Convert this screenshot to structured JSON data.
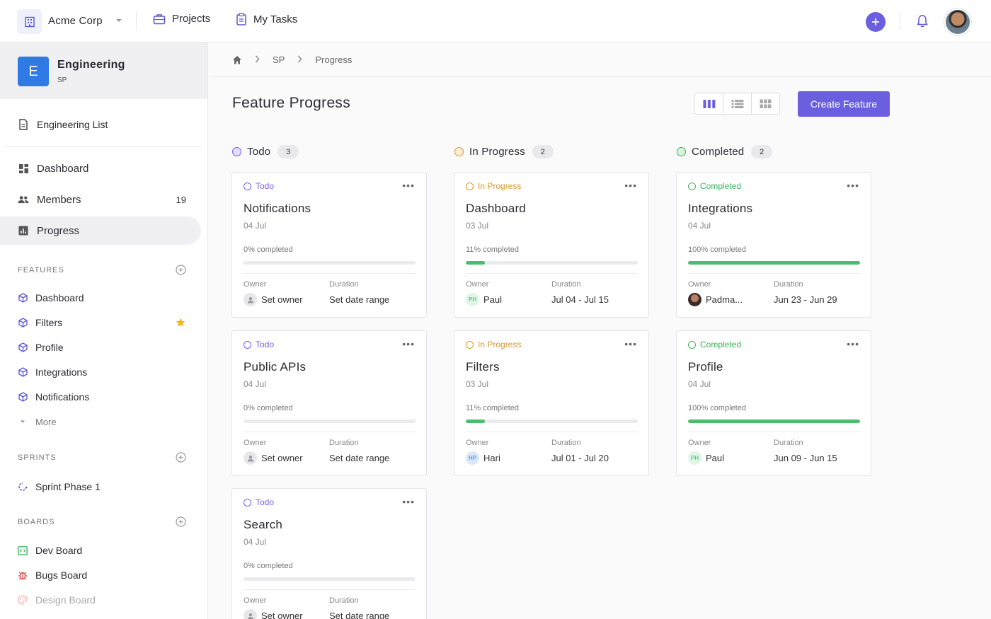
{
  "topbar": {
    "org_name": "Acme Corp",
    "nav": [
      {
        "label": "Projects",
        "icon": "briefcase-icon"
      },
      {
        "label": "My Tasks",
        "icon": "clipboard-icon"
      }
    ]
  },
  "sidebar": {
    "space": {
      "initial": "E",
      "name": "Engineering",
      "code": "SP"
    },
    "list_link": "Engineering List",
    "main_items": [
      {
        "label": "Dashboard",
        "icon": "dashboard-icon"
      },
      {
        "label": "Members",
        "icon": "people-icon",
        "count": "19"
      },
      {
        "label": "Progress",
        "icon": "chart-icon"
      }
    ],
    "features_title": "FEATURES",
    "features": [
      "Dashboard",
      "Filters",
      "Profile",
      "Integrations",
      "Notifications"
    ],
    "more_label": "More",
    "sprints_title": "SPRINTS",
    "sprints": [
      "Sprint Phase 1"
    ],
    "boards_title": "BOARDS",
    "boards": [
      "Dev Board",
      "Bugs Board",
      "Design Board"
    ]
  },
  "breadcrumb": {
    "items": [
      "SP",
      "Progress"
    ]
  },
  "page": {
    "title": "Feature Progress",
    "create_label": "Create Feature"
  },
  "colors": {
    "accent": "#6b5fe0",
    "todo": "#7a5ce6",
    "in_progress": "#d79a2c",
    "completed": "#3cb35c",
    "progress_fill": "#4bbd6b"
  },
  "columns": [
    {
      "name": "Todo",
      "count": "3",
      "status_key": "todo",
      "cards": [
        {
          "status": "Todo",
          "title": "Notifications",
          "date": "04 Jul",
          "progress": 0,
          "pct_label": "0% completed",
          "owner_label": "Owner",
          "owner": "Set owner",
          "owner_initials": "",
          "duration_label": "Duration",
          "duration": "Set date range"
        },
        {
          "status": "Todo",
          "title": "Public APIs",
          "date": "04 Jul",
          "progress": 0,
          "pct_label": "0% completed",
          "owner_label": "Owner",
          "owner": "Set owner",
          "owner_initials": "",
          "duration_label": "Duration",
          "duration": "Set date range"
        },
        {
          "status": "Todo",
          "title": "Search",
          "date": "04 Jul",
          "progress": 0,
          "pct_label": "0% completed",
          "owner_label": "Owner",
          "owner": "Set owner",
          "owner_initials": "",
          "duration_label": "Duration",
          "duration": "Set date range"
        }
      ]
    },
    {
      "name": "In Progress",
      "count": "2",
      "status_key": "in_progress",
      "cards": [
        {
          "status": "In Progress",
          "title": "Dashboard",
          "date": "03 Jul",
          "progress": 11,
          "pct_label": "11% completed",
          "owner_label": "Owner",
          "owner": "Paul",
          "owner_initials": "PH",
          "duration_label": "Duration",
          "duration": "Jul 04 - Jul 15"
        },
        {
          "status": "In Progress",
          "title": "Filters",
          "date": "03 Jul",
          "progress": 11,
          "pct_label": "11% completed",
          "owner_label": "Owner",
          "owner": "Hari",
          "owner_initials": "HP",
          "duration_label": "Duration",
          "duration": "Jul 01 - Jul 20"
        }
      ]
    },
    {
      "name": "Completed",
      "count": "2",
      "status_key": "completed",
      "cards": [
        {
          "status": "Completed",
          "title": "Integrations",
          "date": "04 Jul",
          "progress": 100,
          "pct_label": "100% completed",
          "owner_label": "Owner",
          "owner": "Padma...",
          "owner_initials": "",
          "duration_label": "Duration",
          "duration": "Jun 23 - Jun 29"
        },
        {
          "status": "Completed",
          "title": "Profile",
          "date": "04 Jul",
          "progress": 100,
          "pct_label": "100% completed",
          "owner_label": "Owner",
          "owner": "Paul",
          "owner_initials": "PH",
          "duration_label": "Duration",
          "duration": "Jun 09 - Jun 15"
        }
      ]
    }
  ]
}
